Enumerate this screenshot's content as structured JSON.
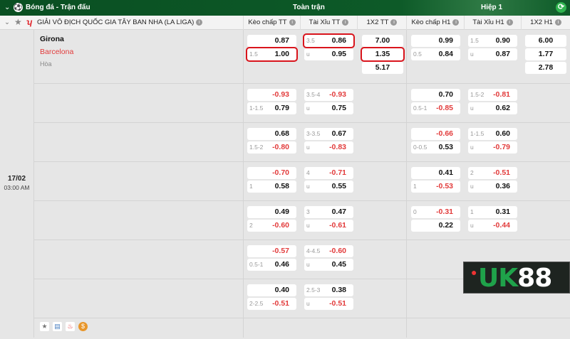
{
  "header": {
    "sport": "Bóng đá - Trận đấu",
    "full_match": "Toàn trận",
    "half1": "Hiệp 1"
  },
  "league": {
    "name": "GIẢI VÔ ĐỊCH QUỐC GIA TÂY BAN NHA (LA LIGA)"
  },
  "columns": [
    "Kèo chấp TT",
    "Tài Xỉu TT",
    "1X2 TT",
    "Kèo chấp H1",
    "Tài Xỉu H1",
    "1X2 H1"
  ],
  "match": {
    "home": "Girona",
    "away": "Barcelona",
    "draw": "Hòa",
    "date": "17/02",
    "time": "03:00 AM"
  },
  "colors": {
    "header_green": "#0b5a27",
    "negative": "#e23b3b",
    "highlight": "#d9141c",
    "away_team": "#e23b3b"
  },
  "rows": [
    [
      [
        {
          "l": "",
          "v": "0.87"
        },
        {
          "l": "1.5",
          "v": "1.00",
          "hl": true
        }
      ],
      [
        {
          "l": "3.5",
          "v": "0.86",
          "hl": true
        },
        {
          "l": "u",
          "v": "0.95"
        }
      ],
      [
        {
          "l": "",
          "v": "7.00"
        },
        {
          "l": "",
          "v": "1.35",
          "hl": true
        },
        {
          "l": "",
          "v": "5.17"
        }
      ],
      [
        {
          "l": "",
          "v": "0.99"
        },
        {
          "l": "0.5",
          "v": "0.84"
        }
      ],
      [
        {
          "l": "1.5",
          "v": "0.90"
        },
        {
          "l": "u",
          "v": "0.87"
        }
      ],
      [
        {
          "l": "",
          "v": "6.00"
        },
        {
          "l": "",
          "v": "1.77"
        },
        {
          "l": "",
          "v": "2.78"
        }
      ]
    ],
    [
      [
        {
          "l": "",
          "v": "-0.93"
        },
        {
          "l": "1-1.5",
          "v": "0.79"
        }
      ],
      [
        {
          "l": "3.5-4",
          "v": "-0.93"
        },
        {
          "l": "u",
          "v": "0.75"
        }
      ],
      [],
      [
        {
          "l": "",
          "v": "0.70"
        },
        {
          "l": "0.5-1",
          "v": "-0.85"
        }
      ],
      [
        {
          "l": "1.5-2",
          "v": "-0.81"
        },
        {
          "l": "u",
          "v": "0.62"
        }
      ],
      []
    ],
    [
      [
        {
          "l": "",
          "v": "0.68"
        },
        {
          "l": "1.5-2",
          "v": "-0.80"
        }
      ],
      [
        {
          "l": "3-3.5",
          "v": "0.67"
        },
        {
          "l": "u",
          "v": "-0.83"
        }
      ],
      [],
      [
        {
          "l": "",
          "v": "-0.66"
        },
        {
          "l": "0-0.5",
          "v": "0.53"
        }
      ],
      [
        {
          "l": "1-1.5",
          "v": "0.60"
        },
        {
          "l": "u",
          "v": "-0.79"
        }
      ],
      []
    ],
    [
      [
        {
          "l": "",
          "v": "-0.70"
        },
        {
          "l": "1",
          "v": "0.58"
        }
      ],
      [
        {
          "l": "4",
          "v": "-0.71"
        },
        {
          "l": "u",
          "v": "0.55"
        }
      ],
      [],
      [
        {
          "l": "",
          "v": "0.41"
        },
        {
          "l": "1",
          "v": "-0.53"
        }
      ],
      [
        {
          "l": "2",
          "v": "-0.51"
        },
        {
          "l": "u",
          "v": "0.36"
        }
      ],
      []
    ],
    [
      [
        {
          "l": "",
          "v": "0.49"
        },
        {
          "l": "2",
          "v": "-0.60"
        }
      ],
      [
        {
          "l": "3",
          "v": "0.47"
        },
        {
          "l": "u",
          "v": "-0.61"
        }
      ],
      [],
      [
        {
          "l": "0",
          "v": "-0.31"
        },
        {
          "l": "",
          "v": "0.22"
        }
      ],
      [
        {
          "l": "1",
          "v": "0.31"
        },
        {
          "l": "u",
          "v": "-0.44"
        }
      ],
      []
    ],
    [
      [
        {
          "l": "",
          "v": "-0.57"
        },
        {
          "l": "0.5-1",
          "v": "0.46"
        }
      ],
      [
        {
          "l": "4-4.5",
          "v": "-0.60"
        },
        {
          "l": "u",
          "v": "0.45"
        }
      ],
      [],
      [],
      [],
      []
    ],
    [
      [
        {
          "l": "",
          "v": "0.40"
        },
        {
          "l": "2-2.5",
          "v": "-0.51"
        }
      ],
      [
        {
          "l": "2.5-3",
          "v": "0.38"
        },
        {
          "l": "u",
          "v": "-0.51"
        }
      ],
      [],
      [],
      [],
      []
    ]
  ],
  "footer_icons": [
    "star-icon",
    "stats-icon",
    "fire-icon",
    "coin-icon"
  ],
  "logo": {
    "text": "UK88"
  }
}
